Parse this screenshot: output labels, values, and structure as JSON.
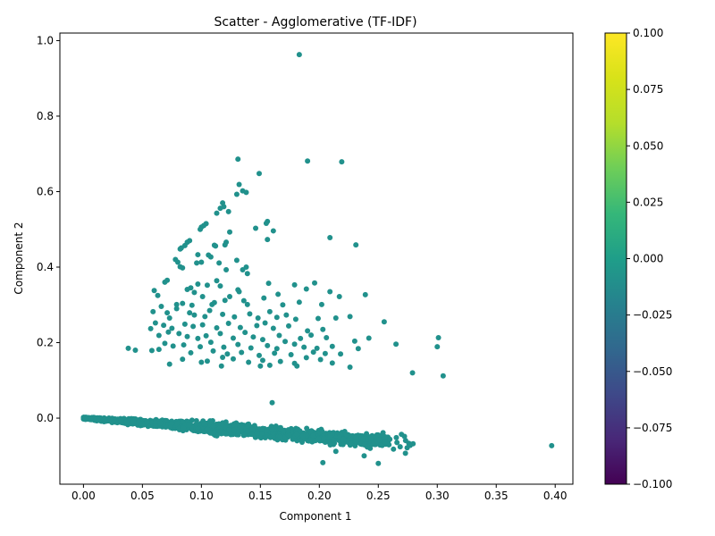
{
  "chart_data": {
    "type": "scatter",
    "title": "Scatter - Agglomerative (TF-IDF)",
    "xlabel": "Component 1",
    "ylabel": "Component 2",
    "xlim": [
      -0.02,
      0.415
    ],
    "ylim": [
      -0.175,
      1.02
    ],
    "x_ticks": [
      0.0,
      0.05,
      0.1,
      0.15,
      0.2,
      0.25,
      0.3,
      0.35,
      0.4
    ],
    "x_tick_labels": [
      "0.00",
      "0.05",
      "0.10",
      "0.15",
      "0.20",
      "0.25",
      "0.30",
      "0.35",
      "0.40"
    ],
    "y_ticks": [
      0.0,
      0.2,
      0.4,
      0.6,
      0.8,
      1.0
    ],
    "y_tick_labels": [
      "0.0",
      "0.2",
      "0.4",
      "0.6",
      "0.8",
      "1.0"
    ],
    "grid": false,
    "point_color": "#21918c",
    "colorbar": {
      "range": [
        -0.1,
        0.1
      ],
      "colormap": "viridis",
      "ticks": [
        0.1,
        0.075,
        0.05,
        0.025,
        0.0,
        -0.025,
        -0.05,
        -0.075,
        -0.1
      ],
      "tick_labels": [
        "0.100",
        "0.075",
        "0.050",
        "0.025",
        "0.000",
        "−0.025",
        "−0.050",
        "−0.075",
        "−0.100"
      ]
    },
    "points": [
      [
        0.183,
        0.963
      ],
      [
        0.131,
        0.686
      ],
      [
        0.19,
        0.681
      ],
      [
        0.219,
        0.679
      ],
      [
        0.149,
        0.648
      ],
      [
        0.132,
        0.619
      ],
      [
        0.135,
        0.602
      ],
      [
        0.138,
        0.598
      ],
      [
        0.13,
        0.593
      ],
      [
        0.118,
        0.57
      ],
      [
        0.119,
        0.56
      ],
      [
        0.116,
        0.556
      ],
      [
        0.123,
        0.547
      ],
      [
        0.113,
        0.543
      ],
      [
        0.156,
        0.521
      ],
      [
        0.155,
        0.516
      ],
      [
        0.104,
        0.515
      ],
      [
        0.102,
        0.51
      ],
      [
        0.1,
        0.506
      ],
      [
        0.099,
        0.5
      ],
      [
        0.146,
        0.503
      ],
      [
        0.161,
        0.496
      ],
      [
        0.124,
        0.493
      ],
      [
        0.156,
        0.473
      ],
      [
        0.209,
        0.478
      ],
      [
        0.09,
        0.47
      ],
      [
        0.088,
        0.466
      ],
      [
        0.086,
        0.457
      ],
      [
        0.083,
        0.451
      ],
      [
        0.082,
        0.448
      ],
      [
        0.111,
        0.458
      ],
      [
        0.112,
        0.456
      ],
      [
        0.121,
        0.466
      ],
      [
        0.12,
        0.459
      ],
      [
        0.231,
        0.459
      ],
      [
        0.097,
        0.433
      ],
      [
        0.106,
        0.432
      ],
      [
        0.108,
        0.427
      ],
      [
        0.078,
        0.42
      ],
      [
        0.08,
        0.413
      ],
      [
        0.1,
        0.413
      ],
      [
        0.096,
        0.411
      ],
      [
        0.13,
        0.418
      ],
      [
        0.115,
        0.411
      ],
      [
        0.138,
        0.4
      ],
      [
        0.121,
        0.393
      ],
      [
        0.135,
        0.393
      ],
      [
        0.139,
        0.383
      ],
      [
        0.082,
        0.401
      ],
      [
        0.084,
        0.398
      ],
      [
        0.069,
        0.36
      ],
      [
        0.071,
        0.365
      ],
      [
        0.06,
        0.338
      ],
      [
        0.063,
        0.325
      ],
      [
        0.088,
        0.341
      ],
      [
        0.091,
        0.345
      ],
      [
        0.097,
        0.355
      ],
      [
        0.105,
        0.352
      ],
      [
        0.113,
        0.364
      ],
      [
        0.116,
        0.35
      ],
      [
        0.131,
        0.34
      ],
      [
        0.132,
        0.335
      ],
      [
        0.157,
        0.357
      ],
      [
        0.179,
        0.353
      ],
      [
        0.196,
        0.358
      ],
      [
        0.189,
        0.342
      ],
      [
        0.209,
        0.335
      ],
      [
        0.217,
        0.322
      ],
      [
        0.239,
        0.327
      ],
      [
        0.165,
        0.328
      ],
      [
        0.079,
        0.301
      ],
      [
        0.084,
        0.304
      ],
      [
        0.092,
        0.299
      ],
      [
        0.094,
        0.333
      ],
      [
        0.101,
        0.322
      ],
      [
        0.109,
        0.301
      ],
      [
        0.111,
        0.306
      ],
      [
        0.12,
        0.312
      ],
      [
        0.124,
        0.322
      ],
      [
        0.136,
        0.311
      ],
      [
        0.139,
        0.301
      ],
      [
        0.153,
        0.318
      ],
      [
        0.169,
        0.3
      ],
      [
        0.183,
        0.307
      ],
      [
        0.202,
        0.301
      ],
      [
        0.059,
        0.282
      ],
      [
        0.066,
        0.296
      ],
      [
        0.071,
        0.279
      ],
      [
        0.073,
        0.265
      ],
      [
        0.079,
        0.29
      ],
      [
        0.09,
        0.279
      ],
      [
        0.094,
        0.273
      ],
      [
        0.103,
        0.269
      ],
      [
        0.107,
        0.285
      ],
      [
        0.118,
        0.275
      ],
      [
        0.128,
        0.268
      ],
      [
        0.141,
        0.276
      ],
      [
        0.148,
        0.265
      ],
      [
        0.158,
        0.282
      ],
      [
        0.164,
        0.267
      ],
      [
        0.172,
        0.273
      ],
      [
        0.18,
        0.262
      ],
      [
        0.199,
        0.264
      ],
      [
        0.214,
        0.265
      ],
      [
        0.226,
        0.269
      ],
      [
        0.061,
        0.252
      ],
      [
        0.068,
        0.246
      ],
      [
        0.075,
        0.238
      ],
      [
        0.086,
        0.249
      ],
      [
        0.093,
        0.243
      ],
      [
        0.101,
        0.247
      ],
      [
        0.113,
        0.239
      ],
      [
        0.123,
        0.251
      ],
      [
        0.133,
        0.24
      ],
      [
        0.147,
        0.245
      ],
      [
        0.154,
        0.252
      ],
      [
        0.161,
        0.238
      ],
      [
        0.174,
        0.244
      ],
      [
        0.19,
        0.231
      ],
      [
        0.203,
        0.235
      ],
      [
        0.255,
        0.255
      ],
      [
        0.057,
        0.237
      ],
      [
        0.064,
        0.219
      ],
      [
        0.072,
        0.228
      ],
      [
        0.081,
        0.224
      ],
      [
        0.088,
        0.216
      ],
      [
        0.097,
        0.211
      ],
      [
        0.104,
        0.218
      ],
      [
        0.116,
        0.224
      ],
      [
        0.127,
        0.212
      ],
      [
        0.137,
        0.227
      ],
      [
        0.144,
        0.215
      ],
      [
        0.152,
        0.208
      ],
      [
        0.166,
        0.219
      ],
      [
        0.171,
        0.203
      ],
      [
        0.184,
        0.211
      ],
      [
        0.193,
        0.22
      ],
      [
        0.206,
        0.213
      ],
      [
        0.23,
        0.204
      ],
      [
        0.242,
        0.212
      ],
      [
        0.265,
        0.196
      ],
      [
        0.301,
        0.213
      ],
      [
        0.3,
        0.189
      ],
      [
        0.069,
        0.198
      ],
      [
        0.076,
        0.191
      ],
      [
        0.085,
        0.194
      ],
      [
        0.099,
        0.189
      ],
      [
        0.108,
        0.201
      ],
      [
        0.119,
        0.188
      ],
      [
        0.131,
        0.195
      ],
      [
        0.142,
        0.186
      ],
      [
        0.156,
        0.192
      ],
      [
        0.164,
        0.184
      ],
      [
        0.179,
        0.196
      ],
      [
        0.187,
        0.188
      ],
      [
        0.198,
        0.185
      ],
      [
        0.211,
        0.19
      ],
      [
        0.038,
        0.185
      ],
      [
        0.044,
        0.18
      ],
      [
        0.058,
        0.179
      ],
      [
        0.064,
        0.182
      ],
      [
        0.091,
        0.173
      ],
      [
        0.11,
        0.178
      ],
      [
        0.122,
        0.17
      ],
      [
        0.134,
        0.174
      ],
      [
        0.149,
        0.166
      ],
      [
        0.162,
        0.172
      ],
      [
        0.176,
        0.168
      ],
      [
        0.195,
        0.175
      ],
      [
        0.205,
        0.171
      ],
      [
        0.218,
        0.17
      ],
      [
        0.233,
        0.184
      ],
      [
        0.084,
        0.156
      ],
      [
        0.105,
        0.151
      ],
      [
        0.118,
        0.161
      ],
      [
        0.127,
        0.157
      ],
      [
        0.14,
        0.148
      ],
      [
        0.152,
        0.153
      ],
      [
        0.167,
        0.15
      ],
      [
        0.179,
        0.145
      ],
      [
        0.189,
        0.16
      ],
      [
        0.201,
        0.155
      ],
      [
        0.211,
        0.146
      ],
      [
        0.226,
        0.135
      ],
      [
        0.073,
        0.143
      ],
      [
        0.1,
        0.148
      ],
      [
        0.117,
        0.138
      ],
      [
        0.15,
        0.138
      ],
      [
        0.158,
        0.14
      ],
      [
        0.181,
        0.138
      ],
      [
        0.279,
        0.12
      ],
      [
        0.305,
        0.112
      ],
      [
        0.16,
        0.041
      ],
      [
        0.397,
        -0.073
      ],
      [
        0.203,
        -0.118
      ],
      [
        0.25,
        -0.12
      ],
      [
        0.238,
        -0.1
      ],
      [
        0.214,
        -0.088
      ],
      [
        0.273,
        -0.093
      ]
    ],
    "dense_band": {
      "description": "dense cluster of points along a line from (0,0) to about (0.27,-0.06)",
      "x_range": [
        0.0,
        0.3
      ],
      "y_at_x0": 0.0,
      "slope": -0.24,
      "spread": 0.02
    }
  }
}
